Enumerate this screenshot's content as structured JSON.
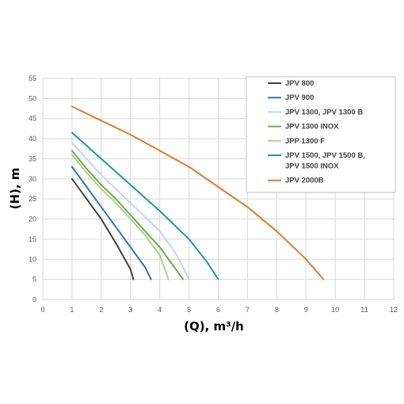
{
  "chart_data": {
    "type": "line",
    "title": "",
    "xlabel": "(Q), m³/h",
    "ylabel": "(H), m",
    "xlim": [
      0,
      12
    ],
    "ylim": [
      0,
      55
    ],
    "xticks": [
      0,
      1,
      2,
      3,
      4,
      5,
      6,
      7,
      8,
      9,
      10,
      11,
      12
    ],
    "yticks": [
      0,
      5,
      10,
      15,
      20,
      25,
      30,
      35,
      40,
      45,
      50,
      55
    ],
    "grid": true,
    "legend_position": "top-right",
    "series": [
      {
        "name": "JPV 800",
        "color": "#404040",
        "points": [
          [
            1,
            30
          ],
          [
            1.5,
            25
          ],
          [
            2,
            20
          ],
          [
            2.5,
            14
          ],
          [
            3,
            7.5
          ],
          [
            3.1,
            5
          ]
        ]
      },
      {
        "name": "JPV 900",
        "color": "#2e75b6",
        "points": [
          [
            1,
            33
          ],
          [
            1.5,
            28
          ],
          [
            2,
            23
          ],
          [
            2.5,
            18
          ],
          [
            3,
            13
          ],
          [
            3.5,
            8
          ],
          [
            3.7,
            5
          ]
        ]
      },
      {
        "name": "JPV 1300, JPV 1300 B",
        "color": "#bdd7ee",
        "points": [
          [
            1,
            39
          ],
          [
            1.5,
            35
          ],
          [
            2,
            31
          ],
          [
            2.5,
            27.5
          ],
          [
            3,
            24
          ],
          [
            3.5,
            20.5
          ],
          [
            4,
            17
          ],
          [
            4.5,
            12
          ],
          [
            4.8,
            8
          ],
          [
            5,
            5
          ]
        ]
      },
      {
        "name": "JPV 1300 INOX",
        "color": "#70ad47",
        "points": [
          [
            1,
            37
          ],
          [
            1.5,
            32.5
          ],
          [
            2,
            28.5
          ],
          [
            2.5,
            25
          ],
          [
            3,
            21
          ],
          [
            3.5,
            17
          ],
          [
            4,
            13
          ],
          [
            4.5,
            8
          ],
          [
            4.8,
            5
          ]
        ]
      },
      {
        "name": "JPP 1300 F",
        "color": "#a9d18e",
        "points": [
          [
            1,
            36
          ],
          [
            1.5,
            31.5
          ],
          [
            2,
            27.5
          ],
          [
            2.5,
            24
          ],
          [
            3,
            20
          ],
          [
            3.5,
            16
          ],
          [
            4,
            11
          ],
          [
            4.3,
            5
          ]
        ]
      },
      {
        "name": "JPV 1500, JPV 1500 B, JPV 1500 INOX",
        "color": "#1e9a9a",
        "points": [
          [
            1,
            41.5
          ],
          [
            2,
            35
          ],
          [
            3,
            28.5
          ],
          [
            4,
            22
          ],
          [
            5,
            15
          ],
          [
            5.6,
            9.5
          ],
          [
            6,
            5
          ]
        ]
      },
      {
        "name": "JPV 2000B",
        "color": "#e07b28",
        "points": [
          [
            1,
            48
          ],
          [
            2,
            44.5
          ],
          [
            3,
            41
          ],
          [
            4,
            37
          ],
          [
            5,
            33
          ],
          [
            6,
            28
          ],
          [
            7,
            23
          ],
          [
            8,
            17
          ],
          [
            9,
            10
          ],
          [
            9.6,
            5
          ]
        ]
      }
    ]
  }
}
